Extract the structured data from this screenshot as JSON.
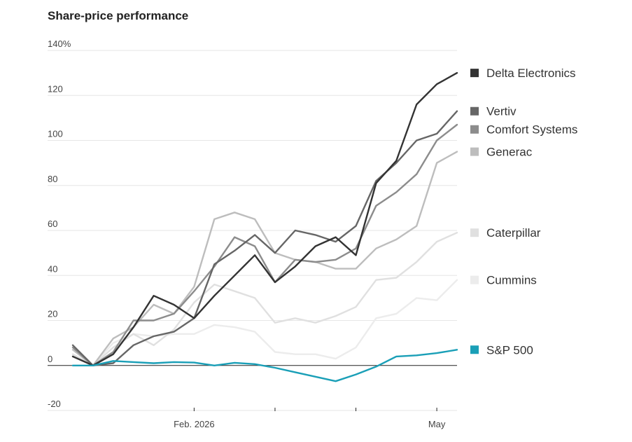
{
  "chart_data": {
    "type": "line",
    "title": "Share-price performance",
    "ylim": [
      -20,
      140
    ],
    "xlim": [
      0,
      19
    ],
    "yticks": [
      {
        "value": 140,
        "label": "140%"
      },
      {
        "value": 120,
        "label": "120"
      },
      {
        "value": 100,
        "label": "100"
      },
      {
        "value": 80,
        "label": "80"
      },
      {
        "value": 60,
        "label": "60"
      },
      {
        "value": 40,
        "label": "40"
      },
      {
        "value": 20,
        "label": "20"
      },
      {
        "value": 0,
        "label": "0"
      },
      {
        "value": -20,
        "label": "-20"
      }
    ],
    "xticks": [
      {
        "value": 6,
        "label": "Feb. 2026"
      },
      {
        "value": 10,
        "label": ""
      },
      {
        "value": 14,
        "label": ""
      },
      {
        "value": 18,
        "label": "May"
      }
    ],
    "grid": true,
    "legend_placement": "right",
    "series": [
      {
        "name": "Cummins",
        "color": "#ececec",
        "x": [
          0,
          1,
          2,
          3,
          4,
          5,
          6,
          7,
          8,
          9,
          10,
          11,
          12,
          13,
          14,
          15,
          16,
          17,
          18,
          19
        ],
        "values": [
          5,
          0,
          10,
          14,
          13,
          14,
          14,
          18,
          17,
          15,
          6,
          5,
          5,
          3,
          8,
          21,
          23,
          30,
          29,
          38
        ]
      },
      {
        "name": "Caterpillar",
        "color": "#e0e0e0",
        "x": [
          0,
          1,
          2,
          3,
          4,
          5,
          6,
          7,
          8,
          9,
          10,
          11,
          12,
          13,
          14,
          15,
          16,
          17,
          18,
          19
        ],
        "values": [
          5,
          0,
          8,
          14,
          9,
          16,
          28,
          36,
          33,
          30,
          19,
          21,
          19,
          22,
          26,
          38,
          39,
          46,
          55,
          59
        ]
      },
      {
        "name": "Generac",
        "color": "#bdbdbd",
        "x": [
          0,
          1,
          2,
          3,
          4,
          5,
          6,
          7,
          8,
          9,
          10,
          11,
          12,
          13,
          14,
          15,
          16,
          17,
          18,
          19
        ],
        "values": [
          7,
          0,
          12,
          17,
          27,
          23,
          35,
          65,
          68,
          65,
          50,
          47,
          46,
          43,
          43,
          52,
          56,
          62,
          90,
          95
        ]
      },
      {
        "name": "Comfort Systems",
        "color": "#8c8c8c",
        "x": [
          0,
          1,
          2,
          3,
          4,
          5,
          6,
          7,
          8,
          9,
          10,
          11,
          12,
          13,
          14,
          15,
          16,
          17,
          18,
          19
        ],
        "values": [
          8,
          0,
          6,
          20,
          20,
          23,
          33,
          44,
          57,
          53,
          37,
          47,
          46,
          47,
          52,
          71,
          77,
          85,
          100,
          107
        ]
      },
      {
        "name": "Vertiv",
        "color": "#666666",
        "x": [
          0,
          1,
          2,
          3,
          4,
          5,
          6,
          7,
          8,
          9,
          10,
          11,
          12,
          13,
          14,
          15,
          16,
          17,
          18,
          19
        ],
        "values": [
          9,
          0,
          1,
          9,
          13,
          15,
          21,
          45,
          51,
          58,
          50,
          60,
          58,
          55,
          62,
          82,
          90,
          100,
          103,
          113
        ]
      },
      {
        "name": "Delta Electronics",
        "color": "#333333",
        "x": [
          0,
          1,
          2,
          3,
          4,
          5,
          6,
          7,
          8,
          9,
          10,
          11,
          12,
          13,
          14,
          15,
          16,
          17,
          18,
          19
        ],
        "values": [
          4,
          0,
          5,
          17,
          31,
          27,
          21,
          31,
          40,
          49,
          37,
          44,
          53,
          57,
          49,
          81,
          91,
          116,
          125,
          130
        ]
      },
      {
        "name": "S&P 500",
        "color": "#1a9fb7",
        "x": [
          0,
          1,
          2,
          3,
          4,
          5,
          6,
          7,
          8,
          9,
          10,
          11,
          12,
          13,
          14,
          15,
          16,
          17,
          18,
          19
        ],
        "values": [
          0,
          0,
          2,
          1.5,
          1,
          1.5,
          1.3,
          0,
          1.2,
          0.6,
          -1,
          -3,
          -5,
          -7,
          -4,
          -0.5,
          4,
          4.5,
          5.5,
          7
        ]
      }
    ],
    "legend": [
      {
        "name": "Delta Electronics",
        "color": "#333333"
      },
      {
        "name": "Vertiv",
        "color": "#666666"
      },
      {
        "name": "Comfort Systems",
        "color": "#8c8c8c"
      },
      {
        "name": "Generac",
        "color": "#bdbdbd"
      },
      {
        "name": "Caterpillar",
        "color": "#e0e0e0"
      },
      {
        "name": "Cummins",
        "color": "#ececec"
      },
      {
        "name": "S&P 500",
        "color": "#1a9fb7"
      }
    ]
  }
}
